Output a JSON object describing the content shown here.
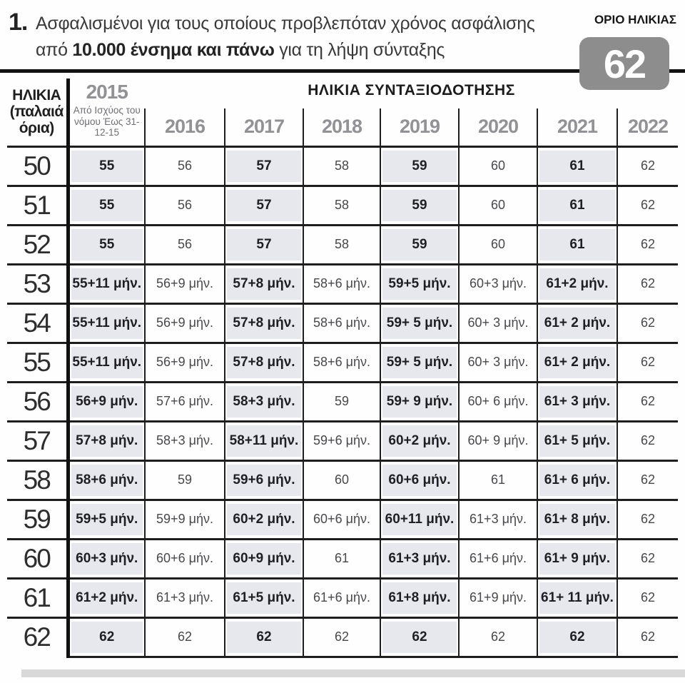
{
  "title": {
    "number": "1.",
    "line1": "Ασφαλισμένοι για τους οποίους προβλεπόταν χρόνος ασφάλισης",
    "line2_prefix": "από ",
    "line2_bold": "10.000 ένσημα και πάνω",
    "line2_suffix": " για τη λήψη σύνταξης"
  },
  "badge": {
    "label": "ΟΡΙΟ ΗΛΙΚΙΑΣ",
    "value": "62"
  },
  "chart_data": {
    "type": "table",
    "title": "1. Ασφαλισμένοι για τους οποίους προβλεπόταν χρόνος ασφάλισης από 10.000 ένσημα και πάνω για τη λήψη σύνταξης",
    "corner_header": [
      "ΗΛΙΚΙΑ",
      "(παλαιά",
      "όρια)"
    ],
    "span_header": "ΗΛΙΚΙΑ ΣΥΝΤΑΞΙΟΔΟΤΗΣΗΣ",
    "columns": [
      "2015",
      "2016",
      "2017",
      "2018",
      "2019",
      "2020",
      "2021",
      "2022"
    ],
    "col_2015_subnote": "Από Ισχύος του νόμου Έως 31-12-15",
    "highlighted_columns": [
      "2015",
      "2017",
      "2019",
      "2021"
    ],
    "age_limit": "62",
    "rows": [
      {
        "age": "50",
        "values": [
          "55",
          "56",
          "57",
          "58",
          "59",
          "60",
          "61",
          "62"
        ]
      },
      {
        "age": "51",
        "values": [
          "55",
          "56",
          "57",
          "58",
          "59",
          "60",
          "61",
          "62"
        ]
      },
      {
        "age": "52",
        "values": [
          "55",
          "56",
          "57",
          "58",
          "59",
          "60",
          "61",
          "62"
        ]
      },
      {
        "age": "53",
        "values": [
          "55+11 μήν.",
          "56+9 μήν.",
          "57+8 μήν.",
          "58+6 μήν.",
          "59+5 μήν.",
          "60+3 μήν.",
          "61+2 μήν.",
          "62"
        ]
      },
      {
        "age": "54",
        "values": [
          "55+11 μήν.",
          "56+9 μήν.",
          "57+8 μήν.",
          "58+6 μήν.",
          "59+ 5 μήν.",
          "60+ 3 μήν.",
          "61+ 2 μήν.",
          "62"
        ]
      },
      {
        "age": "55",
        "values": [
          "55+11 μήν.",
          "56+9 μήν.",
          "57+8 μήν.",
          "58+6 μήν.",
          "59+ 5 μήν.",
          "60+ 3 μήν.",
          "61+ 2 μήν.",
          "62"
        ]
      },
      {
        "age": "56",
        "values": [
          "56+9 μήν.",
          "57+6 μήν.",
          "58+3 μήν.",
          "59",
          "59+ 9 μήν.",
          "60+ 6 μήν.",
          "61+ 3 μήν.",
          "62"
        ]
      },
      {
        "age": "57",
        "values": [
          "57+8 μήν.",
          "58+3 μήν.",
          "58+11 μήν.",
          "59+6 μήν.",
          "60+2 μήν.",
          "60+ 9 μήν.",
          "61+ 5 μήν.",
          "62"
        ]
      },
      {
        "age": "58",
        "values": [
          "58+6 μήν.",
          "59",
          "59+6 μήν.",
          "60",
          "60+6 μήν.",
          "61",
          "61+ 6 μήν.",
          "62"
        ]
      },
      {
        "age": "59",
        "values": [
          "59+5 μήν.",
          "59+9 μήν.",
          "60+2 μήν.",
          "60+6 μήν.",
          "60+11 μήν.",
          "61+3 μήν.",
          "61+ 8 μήν.",
          "62"
        ]
      },
      {
        "age": "60",
        "values": [
          "60+3 μήν.",
          "60+6 μήν.",
          "60+9 μήν.",
          "61",
          "61+3 μήν.",
          "61+6 μήν.",
          "61+ 9 μήν.",
          "62"
        ]
      },
      {
        "age": "61",
        "values": [
          "61+2 μήν.",
          "61+3 μήν.",
          "61+5 μήν.",
          "61+6 μήν.",
          "61+8 μήν.",
          "61+9 μήν.",
          "61+ 11 μήν.",
          "62"
        ]
      },
      {
        "age": "62",
        "values": [
          "62",
          "62",
          "62",
          "62",
          "62",
          "62",
          "62",
          "62"
        ]
      }
    ]
  },
  "colors": {
    "shaded_cell": "#e7e7ee",
    "year_header_gray": "#919196",
    "badge_bg": "#8d8d8d",
    "bottom_bar": "#d9d9d9",
    "line_black": "#1d1d1d"
  }
}
